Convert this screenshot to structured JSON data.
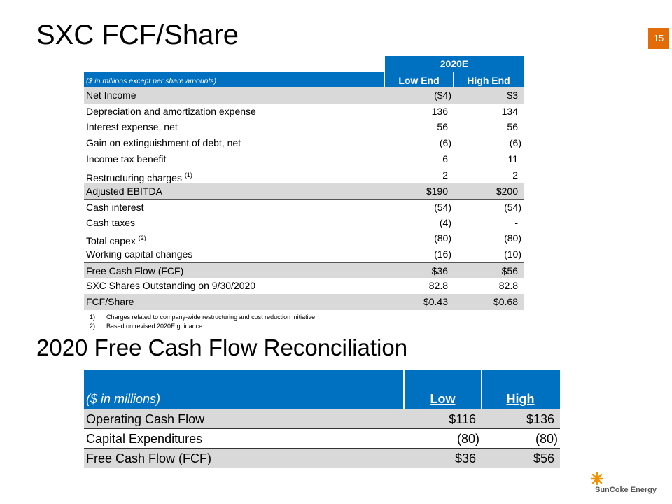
{
  "title": "SXC FCF/Share",
  "page_number": "15",
  "table1": {
    "period": "2020E",
    "units": "($ in millions except per share amounts)",
    "columns": [
      "Low End",
      "High End"
    ],
    "rows": [
      {
        "label": "Net Income",
        "low": "($4)",
        "high": "$3"
      },
      {
        "label": "Depreciation and amortization expense",
        "low": "136",
        "high": "134"
      },
      {
        "label": "Interest expense, net",
        "low": "56",
        "high": "56"
      },
      {
        "label": "Gain on extinguishment of debt, net",
        "low": "(6)",
        "high": "(6)"
      },
      {
        "label": "Income tax benefit",
        "low": "6",
        "high": "11"
      },
      {
        "label": "Restructuring charges",
        "ref": "(1)",
        "low": "2",
        "high": "2"
      },
      {
        "label": "Adjusted EBITDA",
        "low": "$190",
        "high": "$200"
      },
      {
        "label": "Cash interest",
        "low": "(54)",
        "high": "(54)"
      },
      {
        "label": "Cash taxes",
        "low": "(4)",
        "high": "-"
      },
      {
        "label": "Total capex",
        "ref": "(2)",
        "low": "(80)",
        "high": "(80)"
      },
      {
        "label": "Working capital changes",
        "low": "(16)",
        "high": "(10)"
      },
      {
        "label": "Free Cash Flow (FCF)",
        "low": "$36",
        "high": "$56"
      },
      {
        "label": "SXC Shares Outstanding on 9/30/2020",
        "low": "82.8",
        "high": "82.8"
      },
      {
        "label": "FCF/Share",
        "low": "$0.43",
        "high": "$0.68"
      }
    ],
    "footnotes": [
      {
        "marker": "1)",
        "text": "Charges related to company-wide restructuring and cost reduction initiative"
      },
      {
        "marker": "2)",
        "text": "Based on revised 2020E guidance"
      }
    ]
  },
  "section_title": "2020 Free Cash Flow Reconciliation",
  "table2": {
    "units": "($ in millions)",
    "columns": [
      "Low",
      "High"
    ],
    "rows": [
      {
        "label": "Operating Cash Flow",
        "low": "$116",
        "high": "$136"
      },
      {
        "label": "Capital Expenditures",
        "low": "(80)",
        "high": "(80)"
      },
      {
        "label": "Free Cash Flow (FCF)",
        "low": "$36",
        "high": "$56"
      }
    ]
  },
  "logo": "SunCoke Energy"
}
